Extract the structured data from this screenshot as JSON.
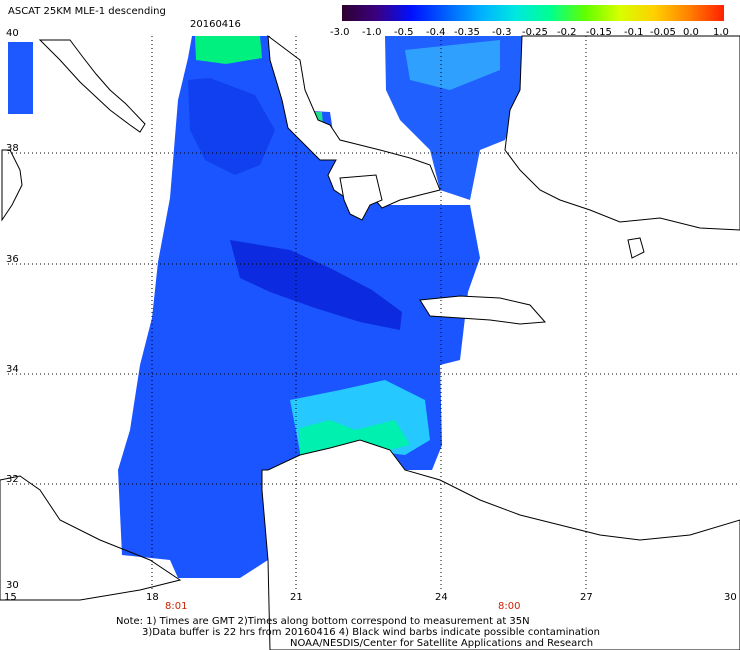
{
  "header": {
    "title": "ASCAT 25KM MLE-1 descending",
    "date": "20160416"
  },
  "colorbar": {
    "gradient": [
      "#300030",
      "#3a0080",
      "#0010ff",
      "#0060ff",
      "#00b0ff",
      "#00e8e0",
      "#00ff90",
      "#60ff00",
      "#d8ff00",
      "#ffd000",
      "#ff8000",
      "#ff2000"
    ],
    "tick_labels": [
      "-3.0",
      "-1.0",
      "-0.5",
      "-0.4",
      "-0.35",
      "-0.3",
      "-0.25",
      "-0.2",
      "-0.15",
      "-0.1",
      "-0.05",
      "0.0",
      "1.0"
    ]
  },
  "map": {
    "lon_labels": [
      "15",
      "18",
      "21",
      "24",
      "27",
      "30"
    ],
    "lat_labels": [
      "40",
      "38",
      "36",
      "34",
      "32",
      "30"
    ],
    "pass_times": [
      "8:01",
      "8:00"
    ],
    "land_color": "#ffffff",
    "coastline_color": "#000000",
    "grid": "dotted"
  },
  "notes": {
    "line1": "Note: 1) Times are GMT 2)Times along bottom correspond to measurement at 35N",
    "line2": "3)Data buffer is 22 hrs from 20160416 4) Black wind barbs indicate possible contamination",
    "line3": "NOAA/NESDIS/Center for Satellite Applications and Research"
  }
}
